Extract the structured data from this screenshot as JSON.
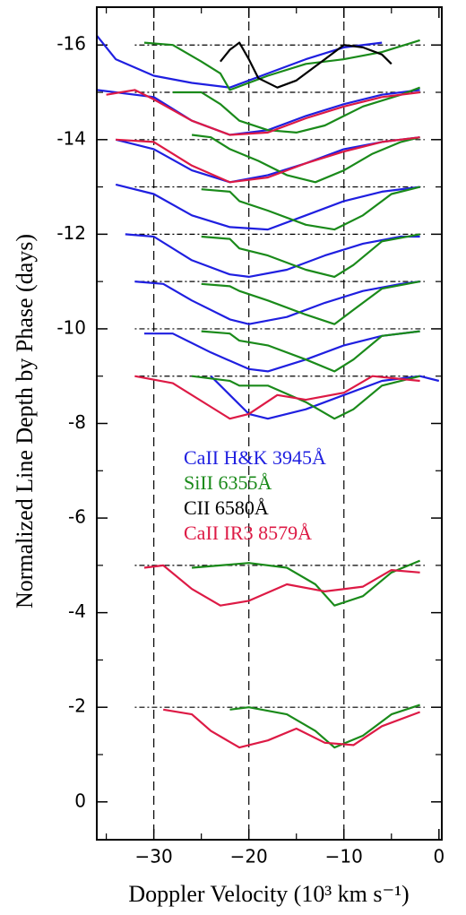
{
  "chart_data": {
    "type": "line",
    "xlabel": "Doppler Velocity (10³ km s⁻¹)",
    "ylabel": "Normalized Line Depth by Phase (days)",
    "xlim": [
      -36,
      0.3
    ],
    "ylim": [
      0.8,
      -16.8
    ],
    "xticks": [
      {
        "value": -30,
        "label": "−30"
      },
      {
        "value": -20,
        "label": "−20"
      },
      {
        "value": -10,
        "label": "−10"
      },
      0
    ],
    "xminorticks": [
      -35,
      -25,
      -15,
      -5
    ],
    "yticks": [
      -16,
      -14,
      -12,
      -10,
      -8,
      -6,
      -4,
      -2,
      0
    ],
    "yminorticks": [
      -15,
      -13,
      -11,
      -9,
      -7,
      -5,
      -3,
      -1
    ],
    "vlines": [
      -30,
      -20,
      -10
    ],
    "baselines": [
      -16,
      -15,
      -14,
      -13,
      -12,
      -11,
      -10,
      -9,
      -5,
      -2
    ],
    "series": [
      {
        "name": "CaII H&K 3945Å",
        "color": "#1f1fe0",
        "curves": [
          {
            "x": [
              -36,
              -34,
              -30,
              -26,
              -22,
              -18,
              -14,
              -10,
              -6
            ],
            "values": [
              -16.2,
              -15.7,
              -15.35,
              -15.2,
              -15.1,
              -15.4,
              -15.7,
              -15.95,
              -16.05
            ]
          },
          {
            "x": [
              -36,
              -30,
              -26,
              -22,
              -18,
              -14,
              -10,
              -6,
              -2
            ],
            "values": [
              -15.05,
              -14.9,
              -14.4,
              -14.1,
              -14.2,
              -14.5,
              -14.75,
              -14.95,
              -15.05
            ]
          },
          {
            "x": [
              -34,
              -30,
              -26,
              -22,
              -18,
              -14,
              -10,
              -6,
              -2
            ],
            "values": [
              -14.0,
              -13.8,
              -13.35,
              -13.1,
              -13.25,
              -13.5,
              -13.8,
              -13.95,
              -14.05
            ]
          },
          {
            "x": [
              -34,
              -30,
              -26,
              -22,
              -18,
              -14,
              -10,
              -6,
              -2
            ],
            "values": [
              -13.05,
              -12.85,
              -12.4,
              -12.15,
              -12.1,
              -12.4,
              -12.7,
              -12.9,
              -13.0
            ]
          },
          {
            "x": [
              -33,
              -30,
              -26,
              -22,
              -20,
              -16,
              -12,
              -8,
              -4,
              -2
            ],
            "values": [
              -12.0,
              -11.95,
              -11.45,
              -11.15,
              -11.1,
              -11.25,
              -11.55,
              -11.8,
              -11.95,
              -11.95
            ]
          },
          {
            "x": [
              -32,
              -29,
              -26,
              -22,
              -20,
              -16,
              -12,
              -8,
              -4,
              -2
            ],
            "values": [
              -11.0,
              -10.95,
              -10.6,
              -10.2,
              -10.1,
              -10.25,
              -10.55,
              -10.8,
              -10.95,
              -11.0
            ]
          },
          {
            "x": [
              -31,
              -28,
              -24,
              -20,
              -18,
              -14,
              -10,
              -6,
              -2
            ],
            "values": [
              -9.9,
              -9.9,
              -9.5,
              -9.15,
              -9.1,
              -9.35,
              -9.65,
              -9.85,
              -9.95
            ]
          },
          {
            "x": [
              -24,
              -22,
              -20,
              -18,
              -14,
              -10,
              -6,
              -2,
              0
            ],
            "values": [
              -9.0,
              -8.6,
              -8.2,
              -8.1,
              -8.3,
              -8.6,
              -8.9,
              -9.0,
              -8.9
            ]
          }
        ]
      },
      {
        "name": "SiII 6355Å",
        "color": "#1a8a1a",
        "curves": [
          {
            "x": [
              -31,
              -28,
              -25,
              -23,
              -22,
              -18,
              -14,
              -10,
              -6,
              -2
            ],
            "values": [
              -16.05,
              -16.0,
              -15.65,
              -15.4,
              -15.05,
              -15.35,
              -15.6,
              -15.7,
              -15.85,
              -16.1
            ]
          },
          {
            "x": [
              -28,
              -25,
              -23,
              -21,
              -18,
              -15,
              -12,
              -8,
              -4,
              -2
            ],
            "values": [
              -15.0,
              -15.0,
              -14.75,
              -14.4,
              -14.2,
              -14.15,
              -14.3,
              -14.7,
              -14.95,
              -15.1
            ]
          },
          {
            "x": [
              -26,
              -24,
              -22,
              -19,
              -16,
              -13,
              -10,
              -7,
              -4,
              -2
            ],
            "values": [
              -14.1,
              -14.05,
              -13.8,
              -13.55,
              -13.25,
              -13.1,
              -13.35,
              -13.7,
              -13.95,
              -14.05
            ]
          },
          {
            "x": [
              -25,
              -22,
              -21,
              -18,
              -14,
              -11,
              -8,
              -5,
              -2
            ],
            "values": [
              -12.95,
              -12.9,
              -12.7,
              -12.5,
              -12.2,
              -12.1,
              -12.4,
              -12.85,
              -13.0
            ]
          },
          {
            "x": [
              -25,
              -22,
              -21,
              -18,
              -14,
              -11,
              -9,
              -6,
              -2
            ],
            "values": [
              -11.95,
              -11.9,
              -11.7,
              -11.55,
              -11.25,
              -11.1,
              -11.35,
              -11.85,
              -12.0
            ]
          },
          {
            "x": [
              -25,
              -22,
              -21,
              -18,
              -14,
              -11,
              -9,
              -6,
              -2
            ],
            "values": [
              -10.95,
              -10.9,
              -10.8,
              -10.6,
              -10.3,
              -10.1,
              -10.4,
              -10.85,
              -11.0
            ]
          },
          {
            "x": [
              -25,
              -22,
              -21,
              -18,
              -14,
              -11,
              -9,
              -6,
              -2
            ],
            "values": [
              -9.95,
              -9.9,
              -9.75,
              -9.65,
              -9.35,
              -9.1,
              -9.35,
              -9.85,
              -9.95
            ]
          },
          {
            "x": [
              -26,
              -22,
              -21,
              -18,
              -14,
              -11,
              -9,
              -6,
              -2
            ],
            "values": [
              -9.0,
              -8.9,
              -8.8,
              -8.8,
              -8.45,
              -8.1,
              -8.3,
              -8.8,
              -9.0
            ]
          },
          {
            "x": [
              -26,
              -20,
              -16,
              -13,
              -11,
              -8,
              -5,
              -2
            ],
            "values": [
              -4.95,
              -5.05,
              -4.95,
              -4.6,
              -4.15,
              -4.35,
              -4.85,
              -5.1
            ]
          },
          {
            "x": [
              -22,
              -20,
              -16,
              -13,
              -11,
              -8,
              -5,
              -2
            ],
            "values": [
              -1.95,
              -2.0,
              -1.85,
              -1.5,
              -1.15,
              -1.4,
              -1.85,
              -2.05
            ]
          }
        ]
      },
      {
        "name": "CII 6580Å",
        "color": "#000000",
        "curves": [
          {
            "x": [
              -23,
              -22,
              -21,
              -20,
              -19,
              -17,
              -15,
              -12,
              -10,
              -8,
              -6,
              -5
            ],
            "values": [
              -15.65,
              -15.9,
              -16.05,
              -15.7,
              -15.3,
              -15.1,
              -15.25,
              -15.7,
              -16.0,
              -15.95,
              -15.8,
              -15.6
            ]
          }
        ]
      },
      {
        "name": "CaII IR3 8579Å",
        "color": "#dd1a45",
        "curves": [
          {
            "x": [
              -35,
              -32,
              -30,
              -26,
              -22,
              -18,
              -14,
              -10,
              -6,
              -2
            ],
            "values": [
              -14.95,
              -15.05,
              -14.85,
              -14.4,
              -14.1,
              -14.15,
              -14.45,
              -14.7,
              -14.9,
              -15.0
            ]
          },
          {
            "x": [
              -34,
              -30,
              -26,
              -22,
              -18,
              -14,
              -10,
              -6,
              -2
            ],
            "values": [
              -14.0,
              -13.95,
              -13.45,
              -13.1,
              -13.2,
              -13.5,
              -13.75,
              -13.95,
              -14.05
            ]
          },
          {
            "x": [
              -32,
              -28,
              -24,
              -22,
              -20,
              -17,
              -14,
              -10,
              -7,
              -2
            ],
            "values": [
              -9.0,
              -8.85,
              -8.35,
              -8.1,
              -8.2,
              -8.6,
              -8.5,
              -8.65,
              -9.0,
              -8.9
            ]
          },
          {
            "x": [
              -31,
              -29,
              -26,
              -23,
              -20,
              -16,
              -12,
              -8,
              -5,
              -2
            ],
            "values": [
              -4.95,
              -5.0,
              -4.5,
              -4.15,
              -4.25,
              -4.6,
              -4.45,
              -4.55,
              -4.9,
              -4.85
            ]
          },
          {
            "x": [
              -29,
              -26,
              -24,
              -21,
              -18,
              -15,
              -12,
              -9,
              -6,
              -2
            ],
            "values": [
              -1.95,
              -1.85,
              -1.5,
              -1.15,
              -1.3,
              -1.55,
              -1.25,
              -1.2,
              -1.6,
              -1.9
            ]
          }
        ]
      }
    ]
  }
}
